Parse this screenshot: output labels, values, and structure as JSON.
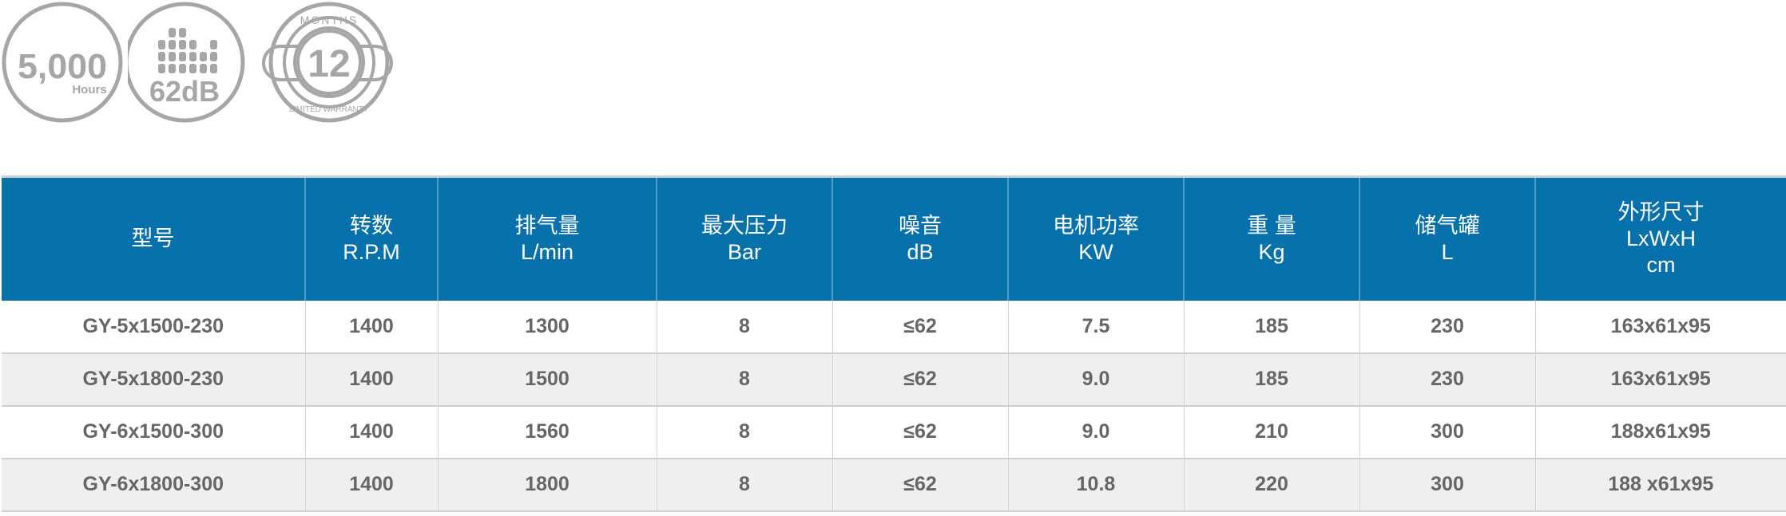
{
  "badges": {
    "hours": {
      "value": "5,000",
      "unit": "Hours"
    },
    "noise": {
      "value": "62dB"
    },
    "warranty": {
      "months_label": "MONTHS",
      "value": "12",
      "caption": "LIMITED WARRANTY"
    },
    "color": "#a6a6a6"
  },
  "table": {
    "header_color": "#0671ab",
    "columns": [
      {
        "label": "型号",
        "unit": ""
      },
      {
        "label": "转数",
        "unit": "R.P.M"
      },
      {
        "label": "排气量",
        "unit": "L/min"
      },
      {
        "label": "最大压力",
        "unit": "Bar"
      },
      {
        "label": "噪音",
        "unit": "dB"
      },
      {
        "label": "电机功率",
        "unit": "KW"
      },
      {
        "label": "重 量",
        "unit": "Kg"
      },
      {
        "label": "储气罐",
        "unit": "L"
      },
      {
        "label": "外形尺寸",
        "unit": "LxWxH",
        "unit2": "cm"
      }
    ],
    "rows": [
      [
        "GY-5x1500-230",
        "1400",
        "1300",
        "8",
        "≤62",
        "7.5",
        "185",
        "230",
        "163x61x95"
      ],
      [
        "GY-5x1800-230",
        "1400",
        "1500",
        "8",
        "≤62",
        "9.0",
        "185",
        "230",
        "163x61x95"
      ],
      [
        "GY-6x1500-300",
        "1400",
        "1560",
        "8",
        "≤62",
        "9.0",
        "210",
        "300",
        "188x61x95"
      ],
      [
        "GY-6x1800-300",
        "1400",
        "1800",
        "8",
        "≤62",
        "10.8",
        "220",
        "300",
        "188 x61x95"
      ]
    ]
  }
}
